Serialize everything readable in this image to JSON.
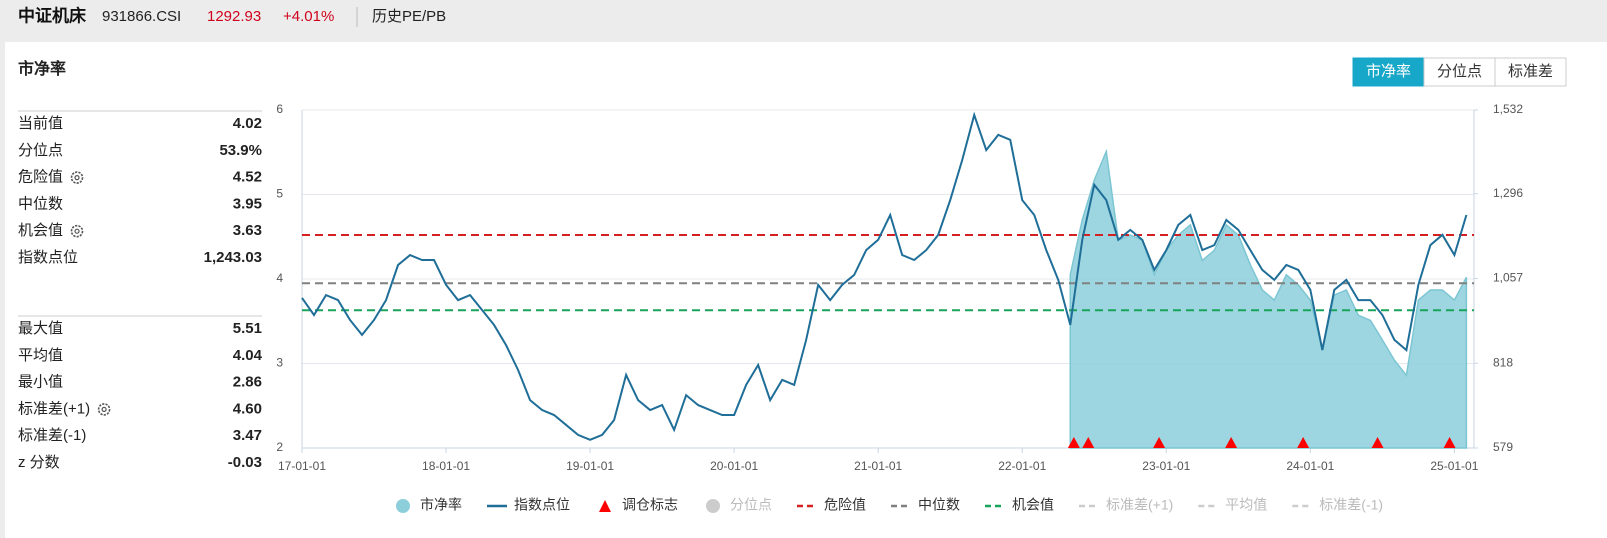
{
  "header": {
    "title": "中证机床",
    "code": "931866.CSI",
    "price": "1292.93",
    "change": "+4.01%",
    "link": "历史PE/PB"
  },
  "panel_title": "市净率",
  "tabs": [
    {
      "label": "市净率",
      "active": true
    },
    {
      "label": "分位点",
      "active": false
    },
    {
      "label": "标准差",
      "active": false
    }
  ],
  "stats": {
    "groups": [
      {
        "rows": [
          {
            "label": "当前值",
            "value": "4.02",
            "gear": false
          },
          {
            "label": "分位点",
            "value": "53.9%",
            "gear": false
          },
          {
            "label": "危险值",
            "value": "4.52",
            "gear": true
          },
          {
            "label": "中位数",
            "value": "3.95",
            "gear": false
          },
          {
            "label": "机会值",
            "value": "3.63",
            "gear": true
          },
          {
            "label": "指数点位",
            "value": "1,243.03",
            "gear": false
          }
        ]
      },
      {
        "rows": [
          {
            "label": "最大值",
            "value": "5.51",
            "gear": false
          },
          {
            "label": "平均值",
            "value": "4.04",
            "gear": false
          },
          {
            "label": "最小值",
            "value": "2.86",
            "gear": false
          },
          {
            "label": "标准差(+1)",
            "value": "4.60",
            "gear": true
          },
          {
            "label": "标准差(-1)",
            "value": "3.47",
            "gear": false
          },
          {
            "label": "z 分数",
            "value": "-0.03",
            "gear": false
          }
        ]
      }
    ]
  },
  "chart_data": {
    "type": "line",
    "x": [
      "17-01-01",
      "17-02-01",
      "17-03-01",
      "17-04-01",
      "17-05-01",
      "17-06-01",
      "17-07-01",
      "17-08-01",
      "17-09-01",
      "17-10-01",
      "17-11-01",
      "17-12-01",
      "18-01-01",
      "18-02-01",
      "18-03-01",
      "18-04-01",
      "18-05-01",
      "18-06-01",
      "18-07-01",
      "18-08-01",
      "18-09-01",
      "18-10-01",
      "18-11-01",
      "18-12-01",
      "19-01-01",
      "19-02-01",
      "19-03-01",
      "19-04-01",
      "19-05-01",
      "19-06-01",
      "19-07-01",
      "19-08-01",
      "19-09-01",
      "19-10-01",
      "19-11-01",
      "19-12-01",
      "20-01-01",
      "20-02-01",
      "20-03-01",
      "20-04-01",
      "20-05-01",
      "20-06-01",
      "20-07-01",
      "20-08-01",
      "20-09-01",
      "20-10-01",
      "20-11-01",
      "20-12-01",
      "21-01-01",
      "21-02-01",
      "21-03-01",
      "21-04-01",
      "21-05-01",
      "21-06-01",
      "21-07-01",
      "21-08-01",
      "21-09-01",
      "21-10-01",
      "21-11-01",
      "21-12-01",
      "22-01-01",
      "22-02-01",
      "22-03-01",
      "22-04-01",
      "22-05-01",
      "22-06-01",
      "22-07-01",
      "22-08-01",
      "22-09-01",
      "22-10-01",
      "22-11-01",
      "22-12-01",
      "23-01-01",
      "23-02-01",
      "23-03-01",
      "23-04-01",
      "23-05-01",
      "23-06-01",
      "23-07-01",
      "23-08-01",
      "23-09-01",
      "23-10-01",
      "23-11-01",
      "23-12-01",
      "24-01-01",
      "24-02-01",
      "24-03-01",
      "24-04-01",
      "24-05-01",
      "24-06-01",
      "24-07-01",
      "24-08-01",
      "24-09-01",
      "24-10-01",
      "24-11-01",
      "24-12-01",
      "25-01-01",
      "25-02-01"
    ],
    "xlim": [
      "17-01-01",
      "25-02-20"
    ],
    "xticks": [
      "17-01-01",
      "18-01-01",
      "19-01-01",
      "20-01-01",
      "21-01-01",
      "22-01-01",
      "23-01-01",
      "24-01-01",
      "25-01-01"
    ],
    "ylim": [
      2,
      6
    ],
    "yticks": [
      2,
      3,
      4,
      5,
      6
    ],
    "y2lim": [
      579,
      1532
    ],
    "y2ticks": [
      {
        "value": 579,
        "label": "579"
      },
      {
        "value": 818,
        "label": "818"
      },
      {
        "value": 1057,
        "label": "1,057"
      },
      {
        "value": 1296,
        "label": "1,296"
      },
      {
        "value": 1532,
        "label": "1,532"
      }
    ],
    "grid": true,
    "series": [
      {
        "name": "市净率",
        "kind": "area",
        "color": "#8ccfda",
        "values": [
          null,
          null,
          null,
          null,
          null,
          null,
          null,
          null,
          null,
          null,
          null,
          null,
          null,
          null,
          null,
          null,
          null,
          null,
          null,
          null,
          null,
          null,
          null,
          null,
          null,
          null,
          null,
          null,
          null,
          null,
          null,
          null,
          null,
          null,
          null,
          null,
          null,
          null,
          null,
          null,
          null,
          null,
          null,
          null,
          null,
          null,
          null,
          null,
          null,
          null,
          null,
          null,
          null,
          null,
          null,
          null,
          null,
          null,
          null,
          null,
          null,
          null,
          null,
          null,
          4.05,
          4.7,
          5.17,
          5.51,
          4.46,
          4.52,
          4.46,
          4.05,
          4.34,
          4.52,
          4.64,
          4.22,
          4.34,
          4.64,
          4.52,
          4.17,
          3.87,
          3.75,
          4.05,
          3.93,
          3.75,
          3.16,
          3.81,
          3.87,
          3.57,
          3.51,
          3.28,
          3.04,
          2.86,
          3.75,
          3.87,
          3.87,
          3.75,
          4.02
        ]
      },
      {
        "name": "指数点位",
        "kind": "line",
        "axis": "y2",
        "color": "#1f6e98",
        "values": [
          1002,
          954,
          1010,
          996,
          940,
          898,
          940,
          996,
          1095,
          1123,
          1109,
          1109,
          1039,
          996,
          1010,
          968,
          926,
          869,
          799,
          714,
          686,
          672,
          644,
          616,
          602,
          616,
          658,
          785,
          714,
          686,
          700,
          630,
          728,
          700,
          686,
          672,
          672,
          757,
          813,
          714,
          771,
          757,
          884,
          1039,
          996,
          1039,
          1067,
          1137,
          1166,
          1236,
          1123,
          1109,
          1137,
          1180,
          1278,
          1391,
          1518,
          1419,
          1462,
          1448,
          1278,
          1236,
          1137,
          1053,
          926,
          1166,
          1321,
          1278,
          1166,
          1194,
          1166,
          1081,
          1137,
          1208,
          1236,
          1137,
          1151,
          1222,
          1194,
          1137,
          1081,
          1053,
          1095,
          1081,
          1025,
          855,
          1025,
          1053,
          996,
          996,
          954,
          884,
          855,
          1039,
          1151,
          1180,
          1123,
          1236
        ]
      }
    ],
    "markers": {
      "name": "调仓标志",
      "color": "#ff0000",
      "dates": [
        "22-05-10",
        "22-06-16",
        "22-12-13",
        "23-06-13",
        "23-12-13",
        "24-06-19",
        "24-12-19"
      ]
    },
    "reference_lines": [
      {
        "name": "危险值",
        "value": 4.52,
        "color": "#d42020"
      },
      {
        "name": "中位数",
        "value": 3.95,
        "color": "#808080"
      },
      {
        "name": "机会值",
        "value": 3.63,
        "color": "#1aa35a"
      }
    ],
    "inactive_legend": [
      {
        "name": "分位点",
        "shape": "circle"
      },
      {
        "name": "标准差(+1)",
        "shape": "dash"
      },
      {
        "name": "平均值",
        "shape": "dash"
      },
      {
        "name": "标准差(-1)",
        "shape": "dash"
      }
    ]
  }
}
